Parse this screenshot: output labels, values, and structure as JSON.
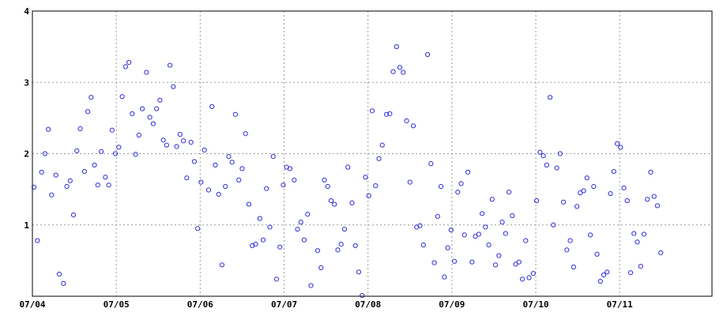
{
  "chart_data": {
    "type": "scatter",
    "title": "",
    "xlabel": "",
    "ylabel": "",
    "grid": true,
    "legend": "none",
    "colors": {
      "points": "#2d2dd8",
      "grid": "#9a9a9a",
      "axis": "#000000"
    },
    "x_range": [
      0,
      8.1
    ],
    "ylim": [
      0,
      4
    ],
    "x_ticks": [
      {
        "value": 0,
        "label": "07/04"
      },
      {
        "value": 1,
        "label": "07/05"
      },
      {
        "value": 2,
        "label": "07/06"
      },
      {
        "value": 3,
        "label": "07/07"
      },
      {
        "value": 4,
        "label": "07/08"
      },
      {
        "value": 5,
        "label": "07/09"
      },
      {
        "value": 6,
        "label": "07/10"
      },
      {
        "value": 7,
        "label": "07/11"
      }
    ],
    "y_ticks": [
      {
        "value": 1,
        "label": "1"
      },
      {
        "value": 2,
        "label": "2"
      },
      {
        "value": 3,
        "label": "3"
      },
      {
        "value": 4,
        "label": "4"
      }
    ],
    "points": [
      [
        0.02,
        1.53
      ],
      [
        0.06,
        0.78
      ],
      [
        0.11,
        1.74
      ],
      [
        0.15,
        2.0
      ],
      [
        0.19,
        2.34
      ],
      [
        0.23,
        1.42
      ],
      [
        0.28,
        1.7
      ],
      [
        0.32,
        0.31
      ],
      [
        0.37,
        0.18
      ],
      [
        0.41,
        1.54
      ],
      [
        0.45,
        1.62
      ],
      [
        0.49,
        1.14
      ],
      [
        0.53,
        2.04
      ],
      [
        0.57,
        2.35
      ],
      [
        0.62,
        1.75
      ],
      [
        0.66,
        2.59
      ],
      [
        0.7,
        2.79
      ],
      [
        0.74,
        1.84
      ],
      [
        0.78,
        1.56
      ],
      [
        0.82,
        2.03
      ],
      [
        0.87,
        1.67
      ],
      [
        0.91,
        1.56
      ],
      [
        0.95,
        2.33
      ],
      [
        0.99,
        2.0
      ],
      [
        1.03,
        2.09
      ],
      [
        1.07,
        2.8
      ],
      [
        1.11,
        3.22
      ],
      [
        1.15,
        3.28
      ],
      [
        1.19,
        2.56
      ],
      [
        1.23,
        1.99
      ],
      [
        1.27,
        2.26
      ],
      [
        1.31,
        2.63
      ],
      [
        1.36,
        3.14
      ],
      [
        1.4,
        2.51
      ],
      [
        1.44,
        2.42
      ],
      [
        1.48,
        2.63
      ],
      [
        1.52,
        2.75
      ],
      [
        1.56,
        2.19
      ],
      [
        1.6,
        2.12
      ],
      [
        1.64,
        3.24
      ],
      [
        1.68,
        2.94
      ],
      [
        1.72,
        2.1
      ],
      [
        1.76,
        2.27
      ],
      [
        1.8,
        2.18
      ],
      [
        1.84,
        1.66
      ],
      [
        1.89,
        2.16
      ],
      [
        1.93,
        1.89
      ],
      [
        1.97,
        0.95
      ],
      [
        2.01,
        1.6
      ],
      [
        2.05,
        2.05
      ],
      [
        2.1,
        1.49
      ],
      [
        2.14,
        2.66
      ],
      [
        2.18,
        1.84
      ],
      [
        2.22,
        1.43
      ],
      [
        2.26,
        0.44
      ],
      [
        2.3,
        1.54
      ],
      [
        2.34,
        1.96
      ],
      [
        2.38,
        1.88
      ],
      [
        2.42,
        2.55
      ],
      [
        2.46,
        1.63
      ],
      [
        2.5,
        1.79
      ],
      [
        2.54,
        2.28
      ],
      [
        2.58,
        1.29
      ],
      [
        2.62,
        0.71
      ],
      [
        2.66,
        0.73
      ],
      [
        2.71,
        1.09
      ],
      [
        2.75,
        0.79
      ],
      [
        2.79,
        1.51
      ],
      [
        2.83,
        0.97
      ],
      [
        2.87,
        1.96
      ],
      [
        2.91,
        0.24
      ],
      [
        2.95,
        0.69
      ],
      [
        2.99,
        1.56
      ],
      [
        3.03,
        1.81
      ],
      [
        3.07,
        1.79
      ],
      [
        3.12,
        1.63
      ],
      [
        3.16,
        0.94
      ],
      [
        3.2,
        1.04
      ],
      [
        3.24,
        0.79
      ],
      [
        3.28,
        1.15
      ],
      [
        3.32,
        0.15
      ],
      [
        3.4,
        0.64
      ],
      [
        3.44,
        0.4
      ],
      [
        3.48,
        1.63
      ],
      [
        3.52,
        1.54
      ],
      [
        3.56,
        1.34
      ],
      [
        3.6,
        1.29
      ],
      [
        3.64,
        0.65
      ],
      [
        3.68,
        0.73
      ],
      [
        3.72,
        0.94
      ],
      [
        3.76,
        1.81
      ],
      [
        3.81,
        1.31
      ],
      [
        3.85,
        0.71
      ],
      [
        3.89,
        0.34
      ],
      [
        3.93,
        0.01
      ],
      [
        3.97,
        1.67
      ],
      [
        4.01,
        1.41
      ],
      [
        4.05,
        2.6
      ],
      [
        4.09,
        1.55
      ],
      [
        4.13,
        1.93
      ],
      [
        4.17,
        2.12
      ],
      [
        4.22,
        2.55
      ],
      [
        4.26,
        2.56
      ],
      [
        4.3,
        3.15
      ],
      [
        4.34,
        3.5
      ],
      [
        4.38,
        3.21
      ],
      [
        4.42,
        3.14
      ],
      [
        4.46,
        2.46
      ],
      [
        4.5,
        1.6
      ],
      [
        4.54,
        2.39
      ],
      [
        4.58,
        0.97
      ],
      [
        4.62,
        0.99
      ],
      [
        4.66,
        0.72
      ],
      [
        4.71,
        3.39
      ],
      [
        4.75,
        1.86
      ],
      [
        4.79,
        0.47
      ],
      [
        4.83,
        1.12
      ],
      [
        4.87,
        1.54
      ],
      [
        4.91,
        0.27
      ],
      [
        4.95,
        0.68
      ],
      [
        4.99,
        0.93
      ],
      [
        5.03,
        0.49
      ],
      [
        5.07,
        1.46
      ],
      [
        5.11,
        1.58
      ],
      [
        5.15,
        0.86
      ],
      [
        5.19,
        1.74
      ],
      [
        5.24,
        0.48
      ],
      [
        5.28,
        0.84
      ],
      [
        5.32,
        0.87
      ],
      [
        5.36,
        1.16
      ],
      [
        5.4,
        0.97
      ],
      [
        5.44,
        0.72
      ],
      [
        5.48,
        1.36
      ],
      [
        5.52,
        0.44
      ],
      [
        5.56,
        0.57
      ],
      [
        5.6,
        1.04
      ],
      [
        5.64,
        0.88
      ],
      [
        5.68,
        1.46
      ],
      [
        5.72,
        1.13
      ],
      [
        5.76,
        0.45
      ],
      [
        5.8,
        0.48
      ],
      [
        5.84,
        0.24
      ],
      [
        5.88,
        0.78
      ],
      [
        5.92,
        0.26
      ],
      [
        5.97,
        0.32
      ],
      [
        6.01,
        1.34
      ],
      [
        6.05,
        2.02
      ],
      [
        6.09,
        1.97
      ],
      [
        6.13,
        1.84
      ],
      [
        6.17,
        2.79
      ],
      [
        6.21,
        1.0
      ],
      [
        6.25,
        1.8
      ],
      [
        6.29,
        2.0
      ],
      [
        6.33,
        1.32
      ],
      [
        6.37,
        0.65
      ],
      [
        6.41,
        0.78
      ],
      [
        6.45,
        0.41
      ],
      [
        6.49,
        1.26
      ],
      [
        6.53,
        1.45
      ],
      [
        6.57,
        1.48
      ],
      [
        6.61,
        1.66
      ],
      [
        6.65,
        0.86
      ],
      [
        6.69,
        1.54
      ],
      [
        6.73,
        0.59
      ],
      [
        6.77,
        0.21
      ],
      [
        6.81,
        0.3
      ],
      [
        6.85,
        0.34
      ],
      [
        6.89,
        1.44
      ],
      [
        6.93,
        1.75
      ],
      [
        6.97,
        2.14
      ],
      [
        7.01,
        2.09
      ],
      [
        7.05,
        1.52
      ],
      [
        7.09,
        1.34
      ],
      [
        7.13,
        0.33
      ],
      [
        7.17,
        0.88
      ],
      [
        7.21,
        0.76
      ],
      [
        7.25,
        0.42
      ],
      [
        7.29,
        0.87
      ],
      [
        7.33,
        1.36
      ],
      [
        7.37,
        1.74
      ],
      [
        7.41,
        1.4
      ],
      [
        7.45,
        1.27
      ],
      [
        7.49,
        0.61
      ]
    ]
  }
}
